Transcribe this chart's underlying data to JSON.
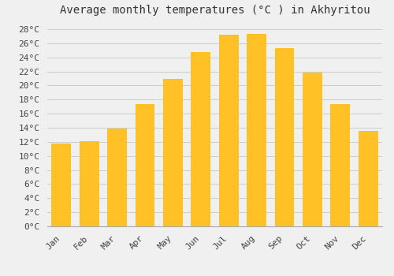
{
  "title": "Average monthly temperatures (°C ) in Akhyritou",
  "months": [
    "Jan",
    "Feb",
    "Mar",
    "Apr",
    "May",
    "Jun",
    "Jul",
    "Aug",
    "Sep",
    "Oct",
    "Nov",
    "Dec"
  ],
  "temperatures": [
    11.8,
    12.1,
    13.9,
    17.3,
    20.9,
    24.8,
    27.2,
    27.3,
    25.3,
    21.8,
    17.4,
    13.5
  ],
  "bar_color": "#FFC125",
  "background_color": "#F0F0F0",
  "grid_color": "#CCCCCC",
  "ylim": [
    0,
    29
  ],
  "title_fontsize": 10,
  "tick_fontsize": 8,
  "font_family": "monospace"
}
